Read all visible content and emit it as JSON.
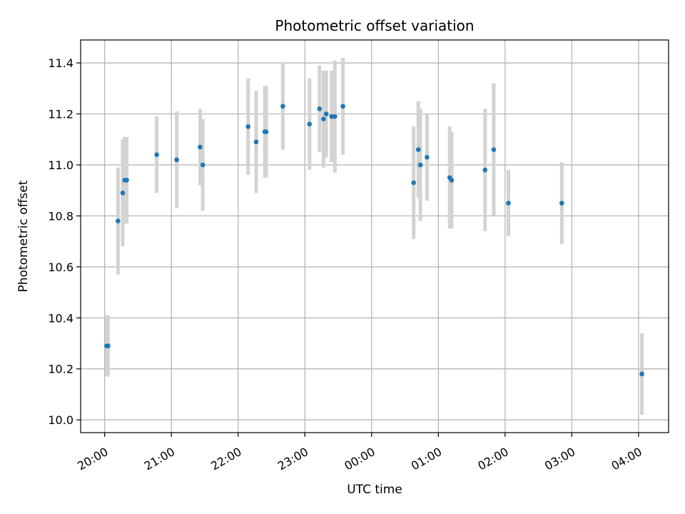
{
  "chart_data": {
    "type": "scatter",
    "title": "Photometric offset variation",
    "xlabel": "UTC time",
    "ylabel": "Photometric offset",
    "x_unit": "hours",
    "x_tick_labels": [
      "20:00",
      "21:00",
      "22:00",
      "23:00",
      "00:00",
      "01:00",
      "02:00",
      "03:00",
      "04:00"
    ],
    "x_tick_values": [
      20,
      21,
      22,
      23,
      24,
      25,
      26,
      27,
      28
    ],
    "xlim": [
      19.64,
      28.45
    ],
    "y_tick_labels": [
      "10.0",
      "10.2",
      "10.4",
      "10.6",
      "10.8",
      "11.0",
      "11.2",
      "11.4"
    ],
    "y_tick_values": [
      10.0,
      10.2,
      10.4,
      10.6,
      10.8,
      11.0,
      11.2,
      11.4
    ],
    "ylim": [
      9.95,
      11.49
    ],
    "grid": true,
    "point_color": "#1f77b4",
    "errorbar_color": "#d3d3d3",
    "points": [
      {
        "x": 20.03,
        "y": 10.29,
        "err": 0.12
      },
      {
        "x": 20.05,
        "y": 10.29,
        "err": 0.12
      },
      {
        "x": 20.2,
        "y": 10.78,
        "err": 0.21
      },
      {
        "x": 20.27,
        "y": 10.89,
        "err": 0.21
      },
      {
        "x": 20.3,
        "y": 10.94,
        "err": 0.17
      },
      {
        "x": 20.33,
        "y": 10.94,
        "err": 0.17
      },
      {
        "x": 20.78,
        "y": 11.04,
        "err": 0.15
      },
      {
        "x": 21.08,
        "y": 11.02,
        "err": 0.19
      },
      {
        "x": 21.43,
        "y": 11.07,
        "err": 0.15
      },
      {
        "x": 21.47,
        "y": 11.0,
        "err": 0.18
      },
      {
        "x": 22.15,
        "y": 11.15,
        "err": 0.19
      },
      {
        "x": 22.27,
        "y": 11.09,
        "err": 0.2
      },
      {
        "x": 22.4,
        "y": 11.13,
        "err": 0.18
      },
      {
        "x": 22.42,
        "y": 11.13,
        "err": 0.18
      },
      {
        "x": 22.67,
        "y": 11.23,
        "err": 0.17
      },
      {
        "x": 23.07,
        "y": 11.16,
        "err": 0.18
      },
      {
        "x": 23.22,
        "y": 11.22,
        "err": 0.17
      },
      {
        "x": 23.28,
        "y": 11.18,
        "err": 0.19
      },
      {
        "x": 23.32,
        "y": 11.2,
        "err": 0.17
      },
      {
        "x": 23.4,
        "y": 11.19,
        "err": 0.18
      },
      {
        "x": 23.45,
        "y": 11.19,
        "err": 0.22
      },
      {
        "x": 23.57,
        "y": 11.23,
        "err": 0.19
      },
      {
        "x": 24.63,
        "y": 10.93,
        "err": 0.22
      },
      {
        "x": 24.7,
        "y": 11.06,
        "err": 0.19
      },
      {
        "x": 24.73,
        "y": 11.0,
        "err": 0.22
      },
      {
        "x": 24.83,
        "y": 11.03,
        "err": 0.17
      },
      {
        "x": 25.17,
        "y": 10.95,
        "err": 0.2
      },
      {
        "x": 25.2,
        "y": 10.94,
        "err": 0.19
      },
      {
        "x": 25.7,
        "y": 10.98,
        "err": 0.24
      },
      {
        "x": 25.83,
        "y": 11.06,
        "err": 0.26
      },
      {
        "x": 26.05,
        "y": 10.85,
        "err": 0.13
      },
      {
        "x": 26.85,
        "y": 10.85,
        "err": 0.16
      },
      {
        "x": 28.05,
        "y": 10.18,
        "err": 0.16
      }
    ]
  }
}
